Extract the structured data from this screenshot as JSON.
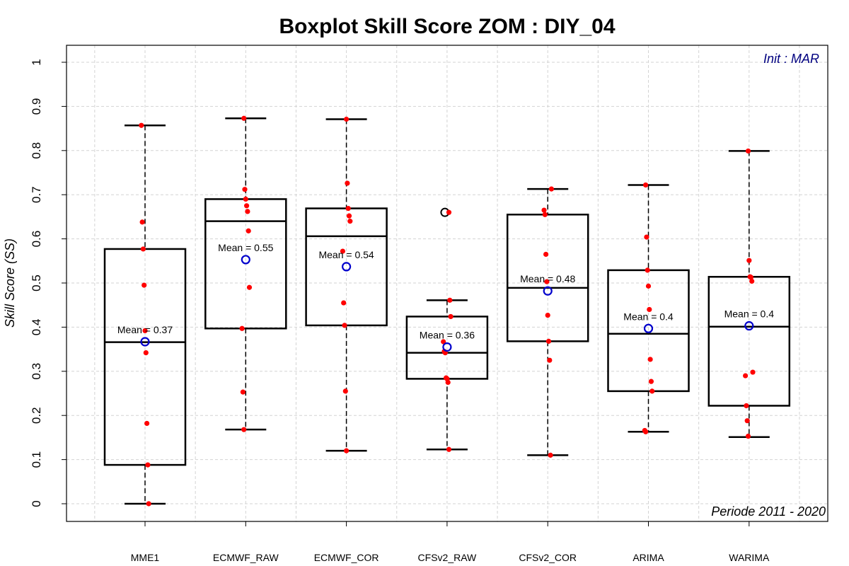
{
  "chart_data": {
    "type": "boxplot",
    "title": "Boxplot Skill Score ZOM : DIY_04",
    "ylabel": "Skill Score (SS)",
    "xlabel": "",
    "ylim": [
      -0.04,
      1.04
    ],
    "yticks": [
      0,
      0.1,
      0.2,
      0.3,
      0.4,
      0.5,
      0.6,
      0.7,
      0.8,
      0.9,
      1
    ],
    "ytick_labels": [
      "0",
      "0.1",
      "0.2",
      "0.3",
      "0.4",
      "0.5",
      "0.6",
      "0.7",
      "0.8",
      "0.9",
      "1"
    ],
    "grid": true,
    "annotations": {
      "init": "Init : MAR",
      "period": "Periode 2011 - 2020"
    },
    "colors": {
      "points": "#ff0000",
      "mean_marker": "#0000cc",
      "init_text": "#000080",
      "grid": "#d3d3d3",
      "box": "#000000"
    },
    "boxes": [
      {
        "category": "MME1",
        "whisker_low": 0.0,
        "q1": 0.088,
        "median": 0.366,
        "q3": 0.577,
        "whisker_high": 0.857,
        "mean": 0.367,
        "mean_label": "Mean = 0.37",
        "points": [
          0.857,
          0.638,
          0.577,
          0.495,
          0.392,
          0.342,
          0.182,
          0.088,
          0.0
        ],
        "outliers": []
      },
      {
        "category": "ECMWF_RAW",
        "whisker_low": 0.168,
        "q1": 0.397,
        "median": 0.64,
        "q3": 0.69,
        "whisker_high": 0.873,
        "mean": 0.553,
        "mean_label": "Mean = 0.55",
        "points": [
          0.873,
          0.712,
          0.69,
          0.675,
          0.662,
          0.618,
          0.49,
          0.397,
          0.253,
          0.168
        ],
        "outliers": []
      },
      {
        "category": "ECMWF_COR",
        "whisker_low": 0.12,
        "q1": 0.404,
        "median": 0.606,
        "q3": 0.669,
        "whisker_high": 0.871,
        "mean": 0.537,
        "mean_label": "Mean = 0.54",
        "points": [
          0.871,
          0.726,
          0.669,
          0.652,
          0.64,
          0.572,
          0.455,
          0.404,
          0.255,
          0.12
        ],
        "outliers": []
      },
      {
        "category": "CFSv2_RAW",
        "whisker_low": 0.123,
        "q1": 0.283,
        "median": 0.342,
        "q3": 0.424,
        "whisker_high": 0.461,
        "mean": 0.355,
        "mean_label": "Mean = 0.36",
        "points": [
          0.66,
          0.461,
          0.424,
          0.367,
          0.345,
          0.342,
          0.285,
          0.283,
          0.275,
          0.123
        ],
        "outliers": [
          0.66
        ]
      },
      {
        "category": "CFSv2_COR",
        "whisker_low": 0.11,
        "q1": 0.368,
        "median": 0.489,
        "q3": 0.655,
        "whisker_high": 0.713,
        "mean": 0.482,
        "mean_label": "Mean = 0.48",
        "points": [
          0.713,
          0.665,
          0.655,
          0.565,
          0.503,
          0.427,
          0.368,
          0.325,
          0.11
        ],
        "outliers": []
      },
      {
        "category": "ARIMA",
        "whisker_low": 0.163,
        "q1": 0.255,
        "median": 0.385,
        "q3": 0.529,
        "whisker_high": 0.722,
        "mean": 0.397,
        "mean_label": "Mean = 0.4",
        "points": [
          0.722,
          0.604,
          0.529,
          0.493,
          0.44,
          0.327,
          0.277,
          0.255,
          0.166,
          0.163
        ],
        "outliers": []
      },
      {
        "category": "WARIMA",
        "whisker_low": 0.151,
        "q1": 0.222,
        "median": 0.401,
        "q3": 0.514,
        "whisker_high": 0.799,
        "mean": 0.403,
        "mean_label": "Mean = 0.4",
        "points": [
          0.799,
          0.551,
          0.514,
          0.513,
          0.504,
          0.298,
          0.29,
          0.222,
          0.188,
          0.153
        ],
        "outliers": []
      }
    ]
  }
}
